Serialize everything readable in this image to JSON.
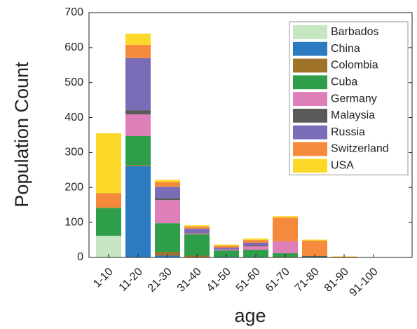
{
  "chart_data": {
    "type": "stacked-bar",
    "xlabel": "age",
    "ylabel": "Population Count",
    "categories": [
      "1-10",
      "11-20",
      "21-30",
      "31-40",
      "41-50",
      "51-60",
      "61-70",
      "71-80",
      "81-90",
      "91-100"
    ],
    "series": [
      {
        "name": "Barbados",
        "color": "#c5e6c0",
        "values": [
          62,
          0,
          0,
          0,
          0,
          0,
          0,
          0,
          0,
          0
        ]
      },
      {
        "name": "China",
        "color": "#2c7bc0",
        "values": [
          0,
          261,
          5,
          0,
          2,
          0,
          0,
          0,
          0,
          0
        ]
      },
      {
        "name": "Colombia",
        "color": "#a0732a",
        "values": [
          0,
          3,
          11,
          5,
          0,
          0,
          2,
          0,
          0,
          0
        ]
      },
      {
        "name": "Cuba",
        "color": "#2e9e4a",
        "values": [
          80,
          83,
          82,
          61,
          18,
          22,
          10,
          2,
          0,
          0
        ]
      },
      {
        "name": "Germany",
        "color": "#de7fb9",
        "values": [
          0,
          62,
          66,
          3,
          3,
          10,
          34,
          0,
          0,
          0
        ]
      },
      {
        "name": "Malaysia",
        "color": "#5a5a5a",
        "values": [
          0,
          12,
          6,
          2,
          0,
          2,
          0,
          2,
          0,
          0
        ]
      },
      {
        "name": "Russia",
        "color": "#7b6cb8",
        "values": [
          0,
          149,
          32,
          11,
          5,
          8,
          0,
          0,
          0,
          0
        ]
      },
      {
        "name": "Switzerland",
        "color": "#f58a3c",
        "values": [
          42,
          38,
          14,
          6,
          5,
          8,
          68,
          44,
          2,
          1
        ]
      },
      {
        "name": "USA",
        "color": "#fcd929",
        "values": [
          171,
          32,
          6,
          4,
          4,
          4,
          4,
          3,
          1,
          0
        ]
      }
    ],
    "ylim": [
      0,
      700
    ],
    "yticks": [
      0,
      100,
      200,
      300,
      400,
      500,
      600,
      700
    ],
    "legend": "upper-right"
  }
}
